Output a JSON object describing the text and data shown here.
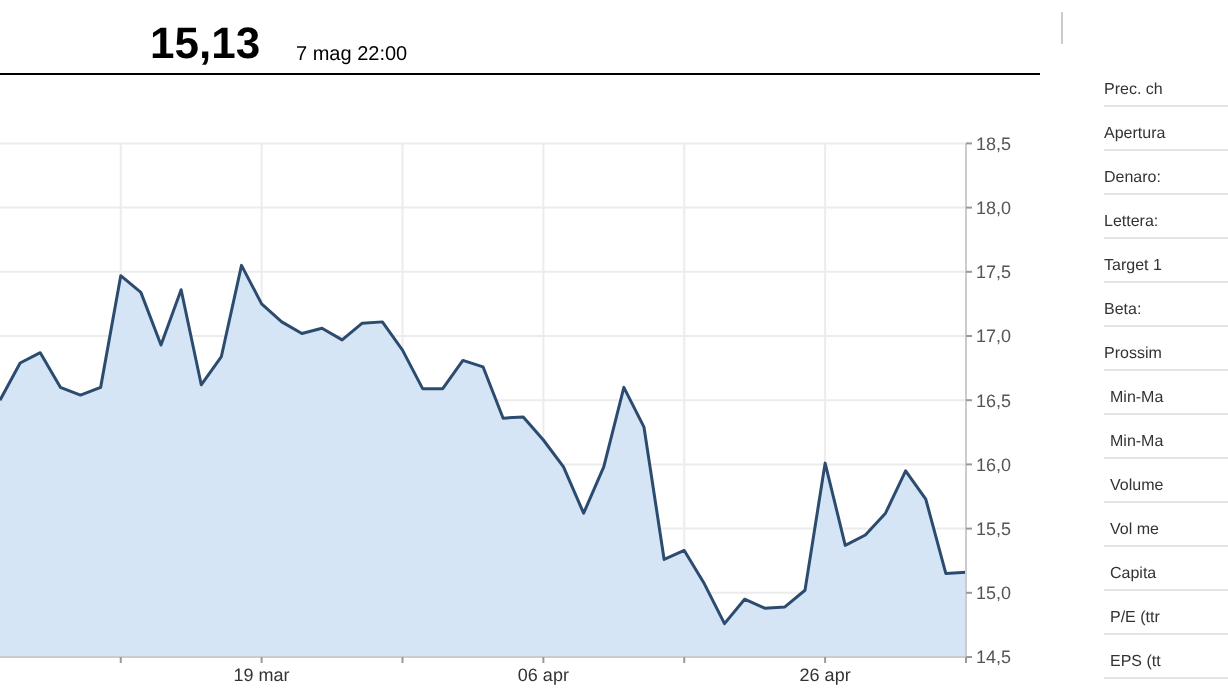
{
  "chart_data": [
    {
      "type": "area",
      "title": "15,13",
      "subtitle": "7 mag 22:00",
      "color": "#2b4c6f",
      "categories": [
        null,
        null,
        null,
        null,
        null,
        null,
        null,
        null,
        null,
        null,
        null,
        null,
        null,
        "19 mar",
        null,
        null,
        null,
        null,
        null,
        null,
        null,
        null,
        null,
        null,
        null,
        null,
        null,
        "06 apr",
        null,
        null,
        null,
        null,
        null,
        null,
        null,
        null,
        null,
        null,
        null,
        null,
        null,
        "26 apr",
        null,
        null,
        null,
        null,
        null,
        null,
        null
      ],
      "values": [
        16.5,
        16.79,
        16.87,
        16.6,
        16.54,
        16.6,
        17.47,
        17.34,
        16.93,
        17.36,
        16.62,
        16.84,
        17.55,
        17.25,
        17.11,
        17.02,
        17.06,
        16.97,
        17.1,
        17.11,
        16.89,
        16.59,
        16.59,
        16.81,
        16.76,
        16.36,
        16.37,
        16.19,
        15.98,
        15.62,
        15.98,
        16.6,
        16.29,
        15.26,
        15.33,
        15.07,
        14.76,
        14.95,
        14.88,
        14.89,
        15.02,
        16.01,
        15.37,
        15.45,
        15.62,
        15.95,
        15.73,
        15.15,
        15.16
      ],
      "ylim": [
        14.5,
        18.5
      ],
      "yticks": [
        {
          "value": 14.5,
          "label": "14,5"
        },
        {
          "value": 15,
          "label": "15,0"
        },
        {
          "value": 15.5,
          "label": "15,5"
        },
        {
          "value": 16,
          "label": "16,0"
        },
        {
          "value": 16.5,
          "label": "16,5"
        },
        {
          "value": 17,
          "label": "17,0"
        },
        {
          "value": 17.5,
          "label": "17,5"
        },
        {
          "value": 18,
          "label": "18,0"
        },
        {
          "value": 18.5,
          "label": "18,5"
        }
      ],
      "grid": true
    },
    {
      "type": "other",
      "annotations": [
        "Prec. ch",
        "Apertura",
        "Denaro:",
        "Lettera:",
        "Target 1",
        "Beta:",
        "Prossim",
        "Min-Ma",
        "Min-Ma",
        "Volume",
        "Vol me",
        "Capita",
        "P/E (ttr",
        "EPS (tt"
      ]
    }
  ]
}
